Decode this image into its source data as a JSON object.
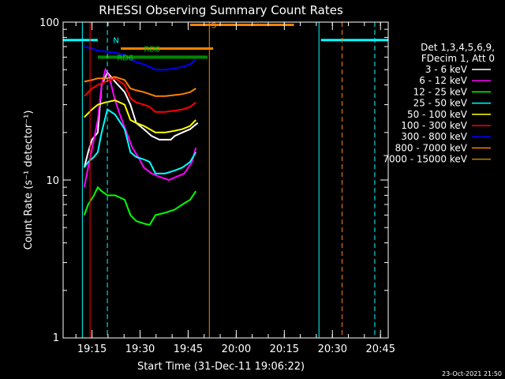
{
  "chart_data": {
    "type": "line",
    "title": "RHESSI Observing Summary Count Rates",
    "xlabel": "Start Time (31-Dec-11 19:06:22)",
    "ylabel": "Count Rate (s⁻¹ detector⁻¹)",
    "yscale": "log",
    "ylim": [
      1,
      100
    ],
    "y_ticks": [
      "1",
      "10",
      "100"
    ],
    "xlim_minutes": [
      19.1,
      20.79
    ],
    "x_ticks": [
      "19:15",
      "19:30",
      "19:45",
      "20:00",
      "20:15",
      "20:30",
      "20:45"
    ],
    "grid": false,
    "legend_header": [
      "Det 1,3,4,5,6,9,",
      "FDecim 1, Att 0"
    ],
    "legend_position": "right",
    "series": [
      {
        "name": "3 - 6 keV",
        "color": "#ffffff",
        "points": [
          [
            19.21,
            12
          ],
          [
            19.23,
            15
          ],
          [
            19.25,
            18
          ],
          [
            19.28,
            20
          ],
          [
            19.3,
            40
          ],
          [
            19.33,
            48
          ],
          [
            19.37,
            42
          ],
          [
            19.42,
            36
          ],
          [
            19.45,
            30
          ],
          [
            19.48,
            23
          ],
          [
            19.52,
            21
          ],
          [
            19.56,
            19
          ],
          [
            19.6,
            18
          ],
          [
            19.63,
            18
          ],
          [
            19.66,
            18
          ],
          [
            19.68,
            19
          ],
          [
            19.72,
            20
          ],
          [
            19.76,
            21
          ],
          [
            19.78,
            22
          ],
          [
            19.8,
            23
          ]
        ]
      },
      {
        "name": "6 - 12 keV",
        "color": "#ff00ff",
        "points": [
          [
            19.21,
            9
          ],
          [
            19.23,
            12
          ],
          [
            19.26,
            18
          ],
          [
            19.28,
            24
          ],
          [
            19.3,
            40
          ],
          [
            19.32,
            50
          ],
          [
            19.34,
            45
          ],
          [
            19.37,
            32
          ],
          [
            19.4,
            25
          ],
          [
            19.43,
            20
          ],
          [
            19.46,
            16
          ],
          [
            19.49,
            14
          ],
          [
            19.52,
            12
          ],
          [
            19.56,
            11
          ],
          [
            19.6,
            10.5
          ],
          [
            19.65,
            10
          ],
          [
            19.69,
            10.5
          ],
          [
            19.73,
            11
          ],
          [
            19.77,
            13
          ],
          [
            19.79,
            16
          ]
        ]
      },
      {
        "name": "12 - 25 keV",
        "color": "#00ff00",
        "points": [
          [
            19.21,
            6
          ],
          [
            19.23,
            7
          ],
          [
            19.26,
            8
          ],
          [
            19.28,
            9
          ],
          [
            19.3,
            8.5
          ],
          [
            19.33,
            8
          ],
          [
            19.37,
            8
          ],
          [
            19.42,
            7.5
          ],
          [
            19.45,
            6
          ],
          [
            19.48,
            5.5
          ],
          [
            19.52,
            5.3
          ],
          [
            19.55,
            5.2
          ],
          [
            19.58,
            6
          ],
          [
            19.63,
            6.2
          ],
          [
            19.68,
            6.5
          ],
          [
            19.72,
            7
          ],
          [
            19.76,
            7.5
          ],
          [
            19.79,
            8.5
          ]
        ]
      },
      {
        "name": "25 - 50 keV",
        "color": "#00ffff",
        "points": [
          [
            19.21,
            12
          ],
          [
            19.23,
            13
          ],
          [
            19.26,
            14
          ],
          [
            19.28,
            15
          ],
          [
            19.3,
            20
          ],
          [
            19.33,
            28
          ],
          [
            19.37,
            26
          ],
          [
            19.42,
            21
          ],
          [
            19.45,
            15
          ],
          [
            19.48,
            14
          ],
          [
            19.52,
            13.5
          ],
          [
            19.55,
            13
          ],
          [
            19.58,
            11
          ],
          [
            19.63,
            11
          ],
          [
            19.68,
            11.5
          ],
          [
            19.72,
            12
          ],
          [
            19.76,
            13
          ],
          [
            19.79,
            15
          ]
        ]
      },
      {
        "name": "50 - 100 keV",
        "color": "#ffff00",
        "points": [
          [
            19.21,
            25
          ],
          [
            19.25,
            28
          ],
          [
            19.28,
            30
          ],
          [
            19.32,
            31
          ],
          [
            19.37,
            32
          ],
          [
            19.42,
            30
          ],
          [
            19.45,
            24
          ],
          [
            19.48,
            23
          ],
          [
            19.52,
            22
          ],
          [
            19.55,
            21
          ],
          [
            19.58,
            20
          ],
          [
            19.63,
            20
          ],
          [
            19.68,
            20.5
          ],
          [
            19.72,
            21
          ],
          [
            19.76,
            22
          ],
          [
            19.79,
            24
          ]
        ]
      },
      {
        "name": "100 - 300 keV",
        "color": "#ff0000",
        "points": [
          [
            19.21,
            34
          ],
          [
            19.25,
            38
          ],
          [
            19.28,
            40
          ],
          [
            19.32,
            42
          ],
          [
            19.37,
            44
          ],
          [
            19.42,
            40
          ],
          [
            19.45,
            33
          ],
          [
            19.48,
            31
          ],
          [
            19.52,
            30
          ],
          [
            19.55,
            29
          ],
          [
            19.58,
            27
          ],
          [
            19.63,
            27
          ],
          [
            19.68,
            27.5
          ],
          [
            19.72,
            28
          ],
          [
            19.76,
            29
          ],
          [
            19.79,
            31
          ]
        ]
      },
      {
        "name": "300 - 800 keV",
        "color": "#0000ff",
        "points": [
          [
            19.21,
            70
          ],
          [
            19.25,
            68
          ],
          [
            19.28,
            66
          ],
          [
            19.32,
            65
          ],
          [
            19.37,
            64
          ],
          [
            19.42,
            62
          ],
          [
            19.45,
            58
          ],
          [
            19.48,
            56
          ],
          [
            19.52,
            54
          ],
          [
            19.55,
            52
          ],
          [
            19.58,
            50
          ],
          [
            19.63,
            50
          ],
          [
            19.68,
            51
          ],
          [
            19.72,
            52
          ],
          [
            19.76,
            54
          ],
          [
            19.79,
            58
          ]
        ]
      },
      {
        "name": "800 - 7000 keV",
        "color": "#ff8000",
        "points": [
          [
            19.21,
            42
          ],
          [
            19.25,
            43
          ],
          [
            19.28,
            44
          ],
          [
            19.32,
            44
          ],
          [
            19.37,
            45
          ],
          [
            19.42,
            43
          ],
          [
            19.45,
            38
          ],
          [
            19.48,
            37
          ],
          [
            19.52,
            36
          ],
          [
            19.55,
            35
          ],
          [
            19.58,
            34
          ],
          [
            19.63,
            34
          ],
          [
            19.68,
            34.5
          ],
          [
            19.72,
            35
          ],
          [
            19.76,
            36
          ],
          [
            19.79,
            38
          ]
        ]
      },
      {
        "name": "7000 - 15000 keV",
        "color": "#c08000",
        "points": []
      }
    ],
    "annotations": [
      {
        "text": "RD0",
        "color": "#00cc00",
        "y": 68
      },
      {
        "text": "RD6",
        "color": "#00cc00",
        "y": 60
      },
      {
        "text": "N",
        "color": "#00ffff",
        "y": 77
      },
      {
        "text": "S",
        "color": "#ff8000",
        "y": 96
      }
    ],
    "footer_date": "23-Oct-2021 21:50"
  }
}
